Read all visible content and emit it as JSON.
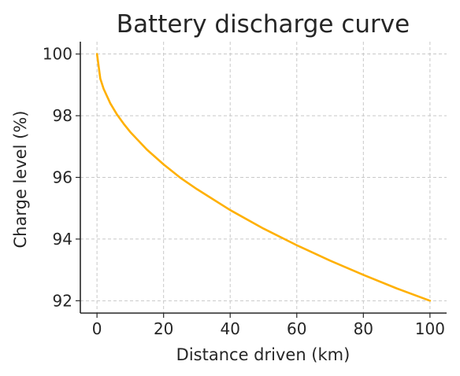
{
  "chart_data": {
    "type": "line",
    "title": "Battery discharge curve",
    "xlabel": "Distance driven (km)",
    "ylabel": "Charge level (%)",
    "xlim": [
      -5,
      105
    ],
    "ylim": [
      91.6,
      100.4
    ],
    "xticks": [
      0,
      20,
      40,
      60,
      80,
      100
    ],
    "yticks": [
      92,
      94,
      96,
      98,
      100
    ],
    "grid": true,
    "series": [
      {
        "color": "#FFB000",
        "x": [
          0,
          1,
          2,
          4,
          6,
          8,
          10,
          15,
          20,
          25,
          30,
          40,
          50,
          60,
          70,
          80,
          90,
          100
        ],
        "y": [
          100.0,
          99.2,
          98.87,
          98.4,
          98.04,
          97.74,
          97.47,
          96.9,
          96.42,
          95.99,
          95.62,
          94.94,
          94.34,
          93.8,
          93.3,
          92.84,
          92.4,
          92.0
        ]
      }
    ]
  }
}
